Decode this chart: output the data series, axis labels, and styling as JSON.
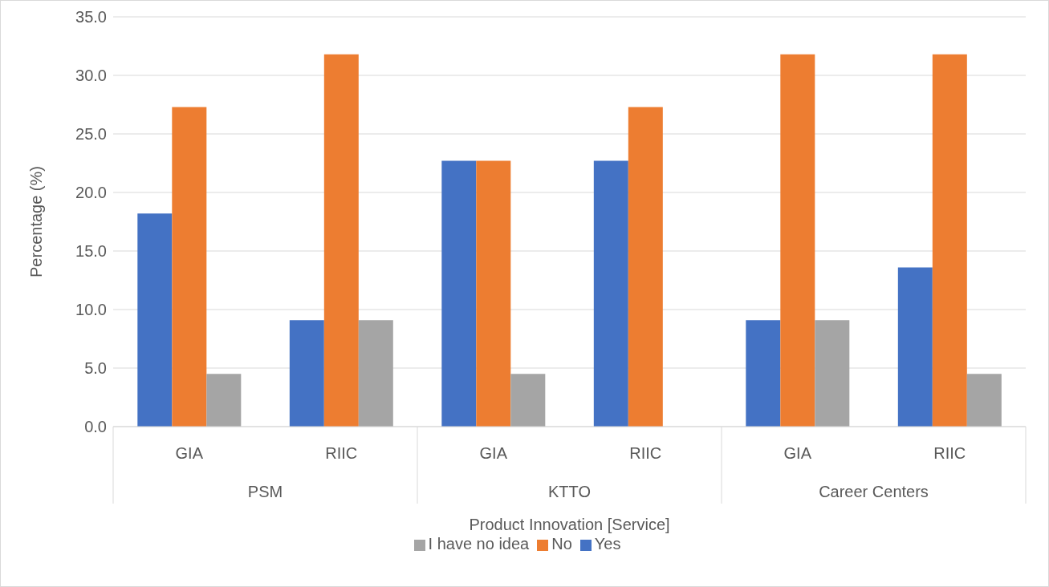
{
  "chart_data": {
    "type": "bar",
    "xlabel": "Product Innovation [Service]",
    "ylabel": "Percentage (%)",
    "categories": [
      "GIA",
      "RIIC",
      "GIA",
      "RIIC",
      "GIA",
      "RIIC"
    ],
    "annotations": [
      "PSM",
      "KTTO",
      "Career Centers"
    ],
    "series": [
      {
        "name": "Yes",
        "color": "#4472c4",
        "values": [
          18.2,
          9.1,
          22.7,
          22.7,
          9.1,
          13.6
        ]
      },
      {
        "name": "No",
        "color": "#ed7d31",
        "values": [
          27.3,
          31.8,
          22.7,
          27.3,
          31.8,
          31.8
        ]
      },
      {
        "name": "I have no idea",
        "color": "#a5a5a5",
        "values": [
          4.5,
          9.1,
          4.5,
          0,
          9.1,
          4.5
        ]
      }
    ],
    "ylim": [
      0,
      35
    ],
    "yticks": [
      {
        "value": 0,
        "label": "0.0"
      },
      {
        "value": 5,
        "label": "5.0"
      },
      {
        "value": 10,
        "label": "10.0"
      },
      {
        "value": 15,
        "label": "15.0"
      },
      {
        "value": 20,
        "label": "20.0"
      },
      {
        "value": 25,
        "label": "25.0"
      },
      {
        "value": 30,
        "label": "30.0"
      },
      {
        "value": 35,
        "label": "35.0"
      }
    ],
    "grid": "y",
    "legend": "bottom"
  }
}
